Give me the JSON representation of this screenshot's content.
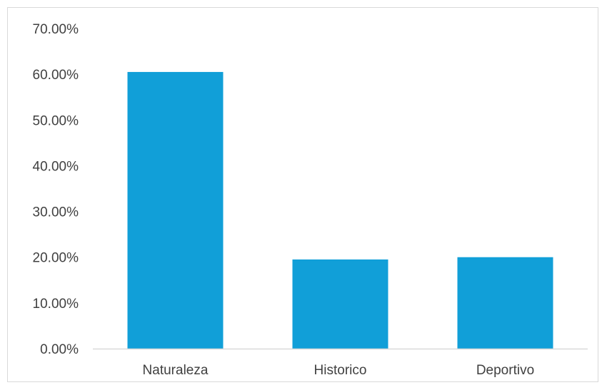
{
  "chart_data": {
    "type": "bar",
    "categories": [
      "Naturaleza",
      "Historico",
      "Deportivo"
    ],
    "values": [
      60.5,
      19.5,
      20.0
    ],
    "ylim": [
      0,
      70
    ],
    "yticks": [
      0,
      10,
      20,
      30,
      40,
      50,
      60,
      70
    ],
    "ytick_labels": [
      "0.00%",
      "10.00%",
      "20.00%",
      "30.00%",
      "40.00%",
      "50.00%",
      "60.00%",
      "70.00%"
    ],
    "title": "",
    "xlabel": "",
    "ylabel": "",
    "grid": false,
    "legend": "none",
    "bar_color": "#119fd8",
    "axis_color": "#d9d9d9"
  }
}
